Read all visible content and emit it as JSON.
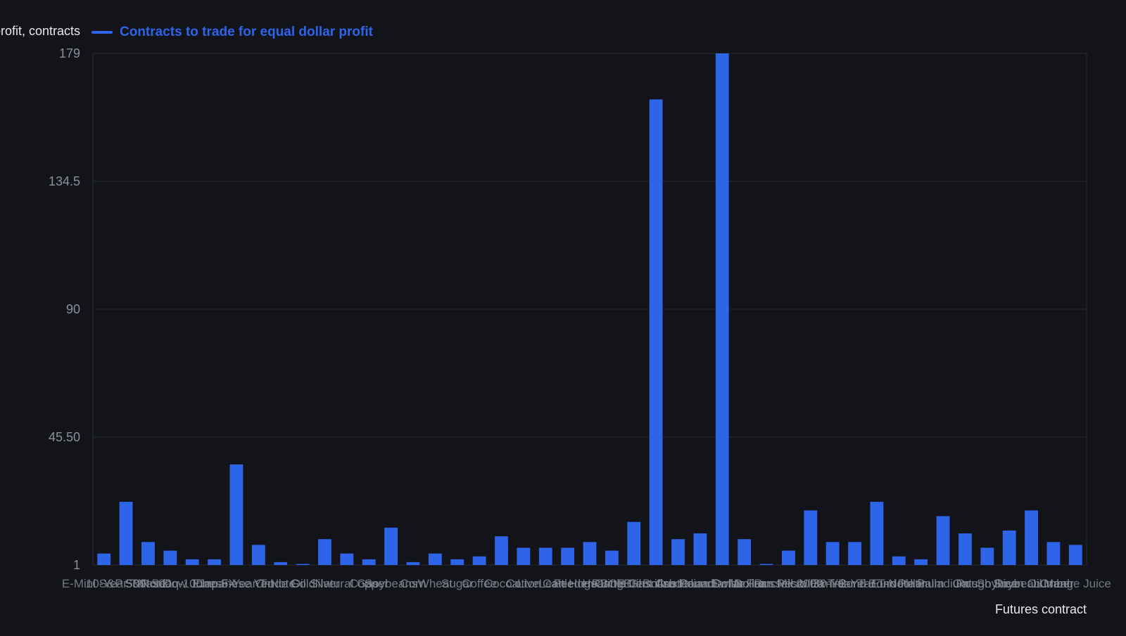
{
  "chart_data": {
    "type": "bar",
    "ylabel": "Equal dollar profit, contracts",
    "xlabel": "Futures contract",
    "yticks": [
      "1",
      "45.50",
      "90",
      "134.5",
      "179"
    ],
    "ylim": [
      1,
      179
    ],
    "grid": true,
    "legend_position": "top",
    "series": [
      {
        "name": "Contracts to trade for equal dollar profit",
        "color": "#2d64e8",
        "values": [
          5,
          23,
          9,
          6,
          3,
          3,
          36,
          8,
          2,
          0.5,
          10,
          5,
          3,
          14,
          2,
          5,
          3,
          4,
          11,
          7,
          7,
          7,
          9,
          6,
          16,
          163,
          10,
          12,
          179,
          10,
          0.5,
          6,
          20,
          9,
          9,
          23,
          4,
          3,
          18,
          12,
          7,
          13,
          20,
          9,
          8
        ]
      }
    ],
    "categories": [
      "E-Mini S&P 500",
      "10-Year T-Note",
      "S&P 500",
      "Nasdaq-100",
      "Dow Jones",
      "Euro FX",
      "Japanese Yen",
      "5-Year T-Note",
      "Crude Oil",
      "Gold",
      "Silver",
      "Natural Gas",
      "Copper",
      "Soybeans",
      "Corn",
      "Wheat",
      "Sugar",
      "Coffee",
      "Cocoa",
      "Cotton",
      "Live Cattle",
      "Lean Hogs",
      "Feeder Cattle",
      "Heating Oil",
      "RBOB Gasoline",
      "Brent Crude",
      "British Pound",
      "Australian Dollar",
      "Canadian Dollar",
      "Swiss Franc",
      "Mexican Peso",
      "Russell 2000",
      "Micro E-mini",
      "Ultra T-Bond",
      "30-Year T-Bond",
      "2-Year T-Note",
      "Eurodollar",
      "Platinum",
      "Palladium",
      "Oats",
      "Rough Rice",
      "Soybean Oil",
      "Soybean Meal",
      "Lumber",
      "Orange Juice"
    ]
  }
}
